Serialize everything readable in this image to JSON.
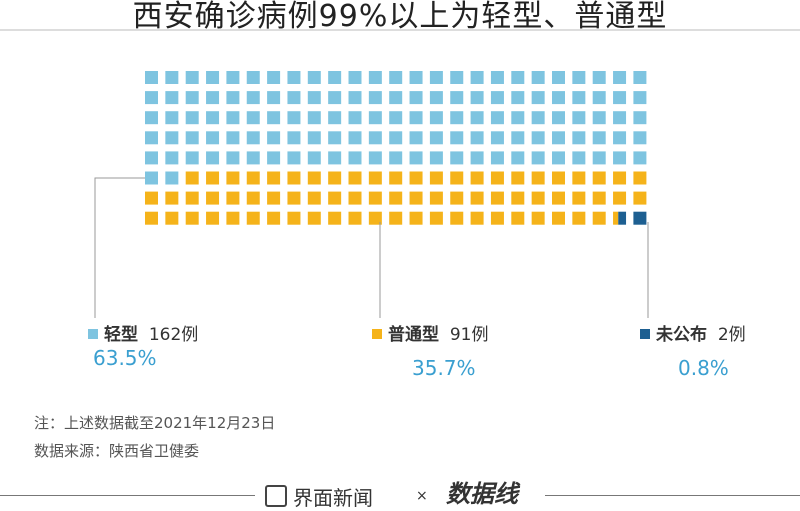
{
  "chart_data": {
    "type": "waffle",
    "title": "西安确诊病例99%以上为轻型、普通型",
    "grid": {
      "rows": 8,
      "cols": 25
    },
    "series": [
      {
        "name": "轻型",
        "count_label": "162例",
        "percent": 63.5,
        "percent_label": "63.5%",
        "color": "#7ec4e0"
      },
      {
        "name": "普通型",
        "count_label": "91例",
        "percent": 35.7,
        "percent_label": "35.7%",
        "color": "#f5b31a"
      },
      {
        "name": "未公布",
        "count_label": "2例",
        "percent": 0.8,
        "percent_label": "0.8%",
        "color": "#1d5f91"
      }
    ]
  },
  "notes": {
    "note": "注：上述数据截至2021年12月23日",
    "source": "数据来源：陕西省卫健委"
  },
  "footer": {
    "brand1": "界面新闻",
    "sep": "×",
    "brand2": "数据线"
  }
}
